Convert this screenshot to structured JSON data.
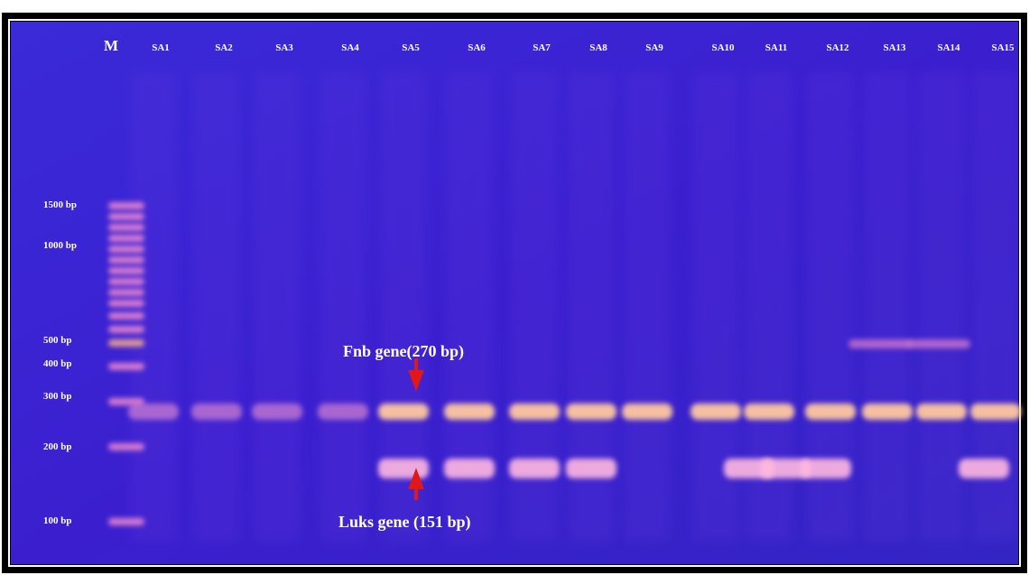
{
  "gel": {
    "lanes": [
      "M",
      "SA1",
      "SA2",
      "SA3",
      "SA4",
      "SA5",
      "SA6",
      "SA7",
      "SA8",
      "SA9",
      "SA10",
      "SA11",
      "SA12",
      "SA13",
      "SA14",
      "SA15"
    ],
    "ladder": [
      "1500 bp",
      "1000 bp",
      "500 bp",
      "400 bp",
      "300 bp",
      "200 bp",
      "100 bp"
    ],
    "annotations": [
      "Fnb gene(270 bp)",
      "Luks gene (151 bp)"
    ]
  }
}
